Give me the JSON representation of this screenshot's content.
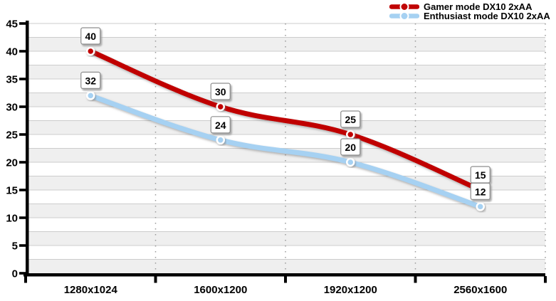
{
  "chart_data": {
    "type": "line",
    "title": "",
    "categories": [
      "1280x1024",
      "1600x1200",
      "1920x1200",
      "2560x1600"
    ],
    "series": [
      {
        "name": "Gamer mode DX10 2xAA",
        "slug": "gamer",
        "values": [
          40,
          30,
          25,
          15
        ],
        "color": "#c00404"
      },
      {
        "name": "Enthusiast mode DX10 2xAA",
        "slug": "enthusiast",
        "values": [
          32,
          24,
          20,
          12
        ],
        "color": "#a6d1f2"
      }
    ],
    "xlabel": "",
    "ylabel": "",
    "ylim": [
      0,
      45
    ],
    "y_ticks": [
      0,
      5,
      10,
      15,
      20,
      25,
      30,
      35,
      40,
      45
    ],
    "y_minor_step": 2.5,
    "grid": true,
    "point_labels": true,
    "legend_position": "top-right"
  },
  "colors": {
    "band_fill": "#efefef",
    "gridline": "#cccccc",
    "dotted_separator": "#999999",
    "axis": "#000000",
    "label_box_fill": "#ffffff",
    "label_box_border": "#8e8e8e",
    "text": "#000000",
    "marker_ring": "#ffffff"
  }
}
